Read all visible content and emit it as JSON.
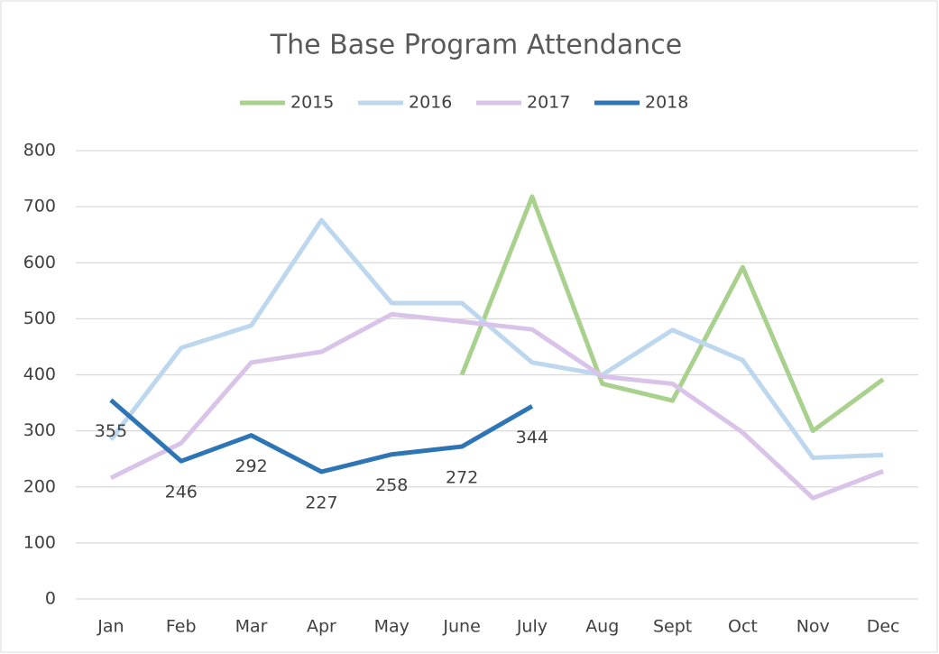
{
  "chart_data": {
    "type": "line",
    "title": "The Base Program Attendance",
    "categories": [
      "Jan",
      "Feb",
      "Mar",
      "Apr",
      "May",
      "June",
      "July",
      "Aug",
      "Sept",
      "Oct",
      "Nov",
      "Dec"
    ],
    "series": [
      {
        "name": "2015",
        "color": "#a9d18e",
        "values": [
          null,
          null,
          null,
          null,
          null,
          400,
          718,
          384,
          354,
          592,
          300,
          392
        ]
      },
      {
        "name": "2016",
        "color": "#bdd7ee",
        "values": [
          284,
          448,
          488,
          676,
          528,
          528,
          422,
          400,
          480,
          426,
          252,
          257
        ]
      },
      {
        "name": "2017",
        "color": "#d9c3e9",
        "values": [
          216,
          278,
          422,
          441,
          508,
          495,
          481,
          397,
          384,
          297,
          180,
          228
        ]
      },
      {
        "name": "2018",
        "color": "#2e75b6",
        "values": [
          355,
          246,
          292,
          227,
          258,
          272,
          344,
          null,
          null,
          null,
          null,
          null
        ],
        "data_labels": true
      }
    ],
    "ylim": [
      0,
      800
    ],
    "yticks": [
      0,
      100,
      200,
      300,
      400,
      500,
      600,
      700,
      800
    ],
    "grid": true,
    "legend": "top"
  }
}
